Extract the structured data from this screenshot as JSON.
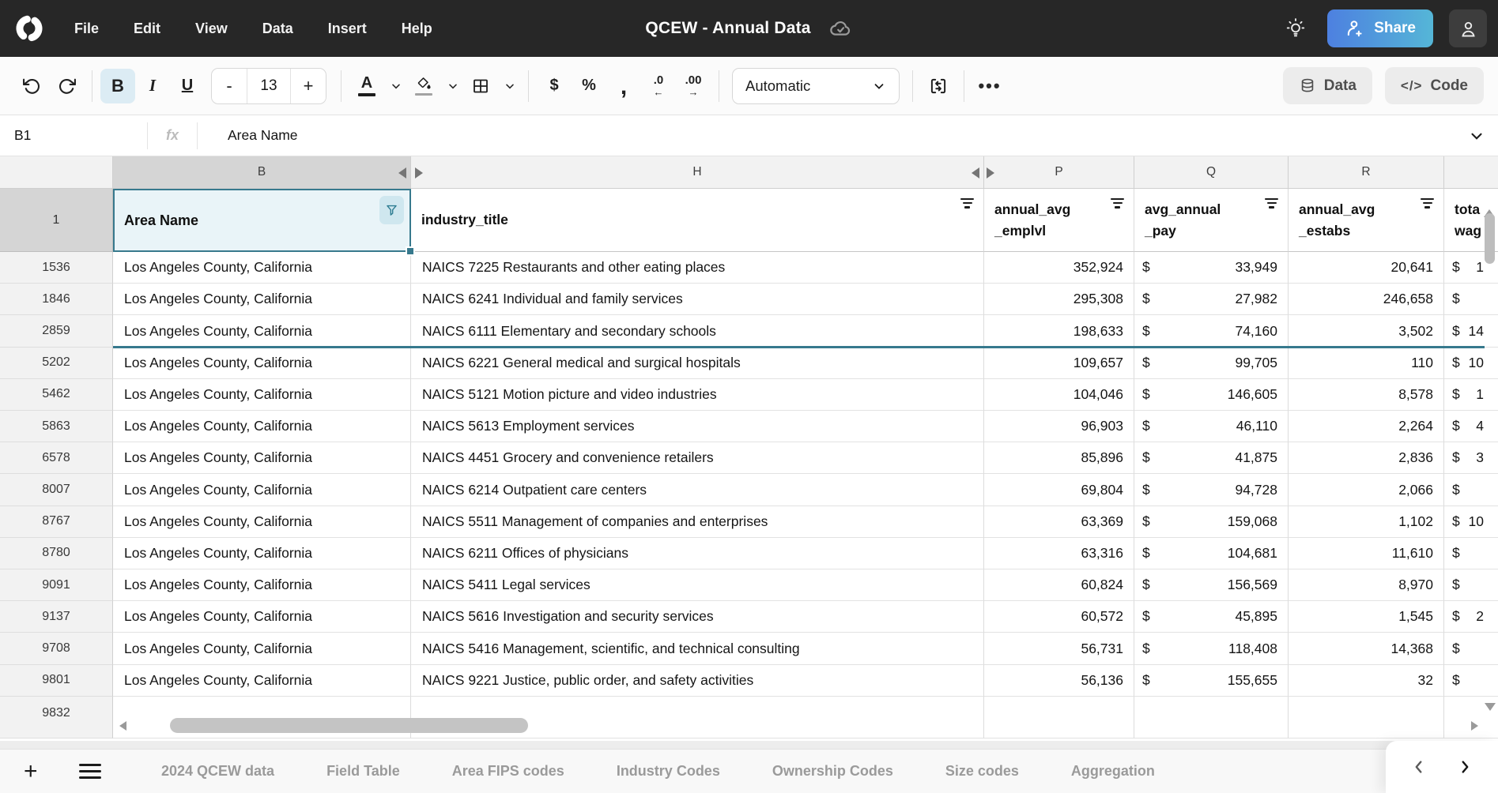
{
  "topbar": {
    "menus": [
      "File",
      "Edit",
      "View",
      "Data",
      "Insert",
      "Help"
    ],
    "title": "QCEW - Annual Data",
    "share_label": "Share"
  },
  "toolbar": {
    "bold": "B",
    "italic": "I",
    "underline": "U",
    "font_size": "13",
    "minus": "-",
    "plus": "+",
    "color_a": "A",
    "currency": "$",
    "percent": "%",
    "comma": ",",
    "dec_decrease": ".0",
    "dec_decrease_arrow": "←",
    "dec_increase": ".00",
    "dec_increase_arrow": "→",
    "format_mode": "Automatic",
    "more": "•••",
    "data_label": "Data",
    "code_label": "Code",
    "code_glyph": "</>"
  },
  "formula_bar": {
    "cell_ref": "B1",
    "fx_label": "fx",
    "value": "Area Name"
  },
  "sheet": {
    "col_letters": {
      "b": "B",
      "h": "H",
      "p": "P",
      "q": "Q",
      "r": "R"
    },
    "header_row": {
      "row_num": "1",
      "b": "Area Name",
      "h": "industry_title",
      "p_line1": "annual_avg",
      "p_line2": "_emplvl",
      "q_line1": "avg_annual",
      "q_line2": "_pay",
      "r_line1": "annual_avg",
      "r_line2": "_estabs",
      "s_line1": "tota",
      "s_line2": "wag"
    },
    "currency_symbol": "$",
    "rows": [
      {
        "n": "1536",
        "area": "Los Angeles County, California",
        "industry": "NAICS 7225 Restaurants and other eating places",
        "emplvl": "352,924",
        "pay": "33,949",
        "estabs": "20,641",
        "wages_partial": "1"
      },
      {
        "n": "1846",
        "area": "Los Angeles County, California",
        "industry": "NAICS 6241 Individual and family services",
        "emplvl": "295,308",
        "pay": "27,982",
        "estabs": "246,658",
        "wages_partial": ""
      },
      {
        "n": "2859",
        "area": "Los Angeles County, California",
        "industry": "NAICS 6111 Elementary and secondary schools",
        "emplvl": "198,633",
        "pay": "74,160",
        "estabs": "3,502",
        "wages_partial": "14"
      },
      {
        "n": "5202",
        "area": "Los Angeles County, California",
        "industry": "NAICS 6221 General medical and surgical hospitals",
        "emplvl": "109,657",
        "pay": "99,705",
        "estabs": "110",
        "wages_partial": "10"
      },
      {
        "n": "5462",
        "area": "Los Angeles County, California",
        "industry": "NAICS 5121 Motion picture and video industries",
        "emplvl": "104,046",
        "pay": "146,605",
        "estabs": "8,578",
        "wages_partial": "1"
      },
      {
        "n": "5863",
        "area": "Los Angeles County, California",
        "industry": "NAICS 5613 Employment services",
        "emplvl": "96,903",
        "pay": "46,110",
        "estabs": "2,264",
        "wages_partial": "4"
      },
      {
        "n": "6578",
        "area": "Los Angeles County, California",
        "industry": "NAICS 4451 Grocery and convenience retailers",
        "emplvl": "85,896",
        "pay": "41,875",
        "estabs": "2,836",
        "wages_partial": "3"
      },
      {
        "n": "8007",
        "area": "Los Angeles County, California",
        "industry": "NAICS 6214 Outpatient care centers",
        "emplvl": "69,804",
        "pay": "94,728",
        "estabs": "2,066",
        "wages_partial": ""
      },
      {
        "n": "8767",
        "area": "Los Angeles County, California",
        "industry": "NAICS 5511 Management of companies and enterprises",
        "emplvl": "63,369",
        "pay": "159,068",
        "estabs": "1,102",
        "wages_partial": "10"
      },
      {
        "n": "8780",
        "area": "Los Angeles County, California",
        "industry": "NAICS 6211 Offices of physicians",
        "emplvl": "63,316",
        "pay": "104,681",
        "estabs": "11,610",
        "wages_partial": ""
      },
      {
        "n": "9091",
        "area": "Los Angeles County, California",
        "industry": "NAICS 5411 Legal services",
        "emplvl": "60,824",
        "pay": "156,569",
        "estabs": "8,970",
        "wages_partial": ""
      },
      {
        "n": "9137",
        "area": "Los Angeles County, California",
        "industry": "NAICS 5616 Investigation and security services",
        "emplvl": "60,572",
        "pay": "45,895",
        "estabs": "1,545",
        "wages_partial": "2"
      },
      {
        "n": "9708",
        "area": "Los Angeles County, California",
        "industry": "NAICS 5416 Management, scientific, and technical consulting",
        "emplvl": "56,731",
        "pay": "118,408",
        "estabs": "14,368",
        "wages_partial": ""
      },
      {
        "n": "9801",
        "area": "Los Angeles County, California",
        "industry": "NAICS 9221 Justice, public order, and safety activities",
        "emplvl": "56,136",
        "pay": "155,655",
        "estabs": "32",
        "wages_partial": ""
      }
    ],
    "last_row_num": "9832"
  },
  "tabbar": {
    "tabs": [
      "2024 QCEW data",
      "Field Table",
      "Area FIPS codes",
      "Industry Codes",
      "Ownership Codes",
      "Size codes",
      "Aggregation"
    ]
  },
  "colors": {
    "accent_teal": "#37798d",
    "selection_bg": "#e9f4f8",
    "topbar_bg": "#272727",
    "share_gradient_start": "#4d80e0",
    "share_gradient_end": "#55b6d7"
  }
}
